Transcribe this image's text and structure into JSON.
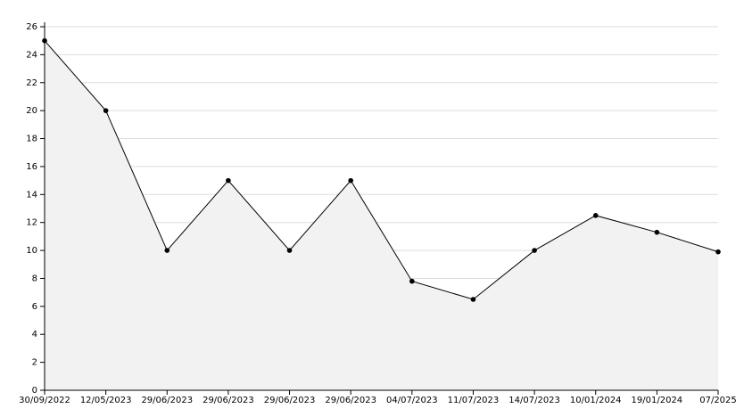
{
  "chart_data": {
    "type": "line",
    "categories": [
      "30/09/2022",
      "12/05/2023",
      "29/06/2023",
      "29/06/2023",
      "29/06/2023",
      "29/06/2023",
      "04/07/2023",
      "11/07/2023",
      "14/07/2023",
      "10/01/2024",
      "19/01/2024",
      "07/2025"
    ],
    "values": [
      25,
      20,
      10,
      15,
      10,
      15,
      7.8,
      6.5,
      10,
      12.5,
      11.3,
      9.9
    ],
    "color": "#000000",
    "area_color": "#f2f2f2",
    "ylim": [
      0,
      26
    ],
    "yticks": [
      0,
      2,
      4,
      6,
      8,
      10,
      12,
      14,
      16,
      18,
      20,
      22,
      24,
      26
    ],
    "grid": true
  }
}
